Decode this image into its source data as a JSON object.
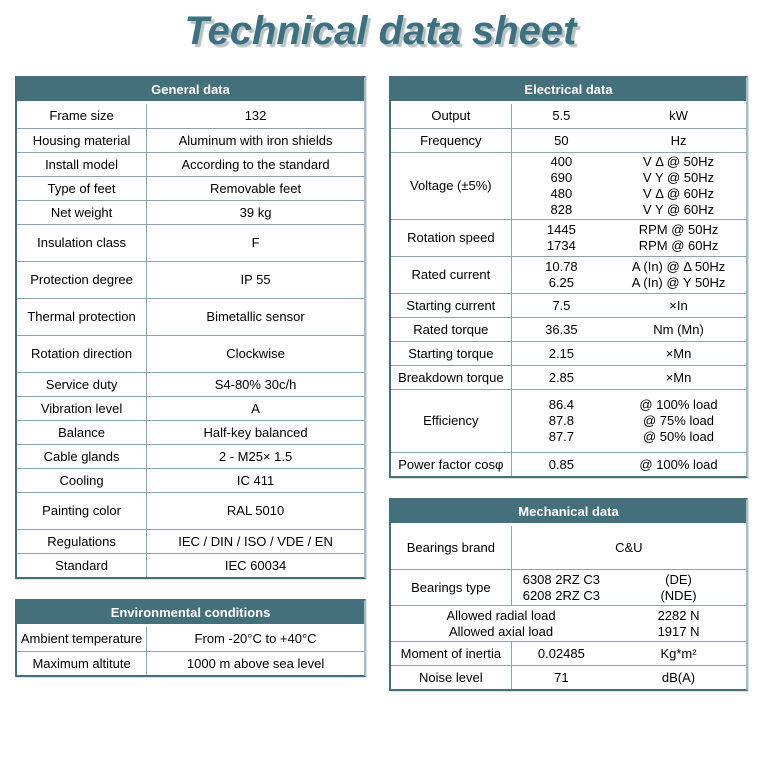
{
  "title": "Technical data sheet",
  "theme": {
    "header_bg": "#44707c",
    "title_color": "#3e717f",
    "border_dark": "#44707c",
    "border_light": "#a7bcc3",
    "grid_line": "#8aa5ae",
    "header_text": "#ffffff",
    "cell_text": "#000000"
  },
  "tables": {
    "general": {
      "title": "General data",
      "columns": 2,
      "rows": [
        {
          "label": "Frame size",
          "value": "132"
        },
        {
          "label": "Housing material",
          "value": "Aluminum with iron shields"
        },
        {
          "label": "Install model",
          "value": "According to the standard"
        },
        {
          "label": "Type of feet",
          "value": "Removable feet"
        },
        {
          "label": "Net weight",
          "value": "39 kg"
        },
        {
          "label": "Insulation class",
          "value": "F"
        },
        {
          "label": "Protection degree",
          "value": "IP 55"
        },
        {
          "label": "Thermal protection",
          "value": "Bimetallic sensor"
        },
        {
          "label": "Rotation direction",
          "value": "Clockwise"
        },
        {
          "label": "Service duty",
          "value": "S4-80% 30c/h"
        },
        {
          "label": "Vibration level",
          "value": "A"
        },
        {
          "label": "Balance",
          "value": "Half-key balanced"
        },
        {
          "label": "Cable glands",
          "value": "2 - M25× 1.5"
        },
        {
          "label": "Cooling",
          "value": "IC 411"
        },
        {
          "label": "Painting color",
          "value": "RAL 5010"
        },
        {
          "label": "Regulations",
          "value": "IEC / DIN / ISO / VDE / EN"
        },
        {
          "label": "Standard",
          "value": "IEC 60034"
        }
      ]
    },
    "environmental": {
      "title": "Environmental conditions",
      "columns": 2,
      "rows": [
        {
          "label": "Ambient temperature",
          "value": "From -20°C to +40°C"
        },
        {
          "label": "Maximum altitute",
          "value": "1000 m above sea level"
        }
      ]
    },
    "electrical": {
      "title": "Electrical data",
      "columns": 3,
      "rows": [
        {
          "label": "Output",
          "values": [
            "5.5"
          ],
          "units": [
            "kW"
          ]
        },
        {
          "label": "Frequency",
          "values": [
            "50"
          ],
          "units": [
            "Hz"
          ]
        },
        {
          "label": "Voltage (±5%)",
          "values": [
            "400",
            "690",
            "480",
            "828"
          ],
          "units": [
            "V Δ @ 50Hz",
            "V Y @ 50Hz",
            "V Δ @ 60Hz",
            "V Y @ 60Hz"
          ]
        },
        {
          "label": "Rotation speed",
          "values": [
            "1445",
            "1734"
          ],
          "units": [
            "RPM @ 50Hz",
            "RPM @ 60Hz"
          ]
        },
        {
          "label": "Rated current",
          "values": [
            "10.78",
            "6.25"
          ],
          "units": [
            "A (In) @ Δ 50Hz",
            "A (In) @ Y 50Hz"
          ]
        },
        {
          "label": "Starting current",
          "values": [
            "7.5"
          ],
          "units": [
            "×In"
          ]
        },
        {
          "label": "Rated torque",
          "values": [
            "36.35"
          ],
          "units": [
            "Nm (Mn)"
          ]
        },
        {
          "label": "Starting torque",
          "values": [
            "2.15"
          ],
          "units": [
            "×Mn"
          ]
        },
        {
          "label": "Breakdown torque",
          "values": [
            "2.85"
          ],
          "units": [
            "×Mn"
          ]
        },
        {
          "label": "Efficiency",
          "values": [
            "86.4",
            "87.8",
            "87.7"
          ],
          "units": [
            "@ 100% load",
            "@ 75% load",
            "@ 50% load"
          ]
        },
        {
          "label": "Power factor cosφ",
          "values": [
            "0.85"
          ],
          "units": [
            "@ 100% load"
          ]
        }
      ]
    },
    "mechanical": {
      "title": "Mechanical data",
      "columns": 3,
      "rows": [
        {
          "label": "Bearings brand",
          "span_value": "C&U"
        },
        {
          "label": "Bearings type",
          "values": [
            "6308 2RZ C3",
            "6208 2RZ C3"
          ],
          "units": [
            "(DE)",
            "(NDE)"
          ]
        },
        {
          "span_label": [
            "Allowed radial load",
            "Allowed axial load"
          ],
          "units": [
            "2282 N",
            "1917 N"
          ]
        },
        {
          "label": "Moment of inertia",
          "values": [
            "0.02485"
          ],
          "units": [
            "Kg*m²"
          ]
        },
        {
          "label": "Noise level",
          "values": [
            "71"
          ],
          "units": [
            "dB(A)"
          ]
        }
      ]
    }
  }
}
